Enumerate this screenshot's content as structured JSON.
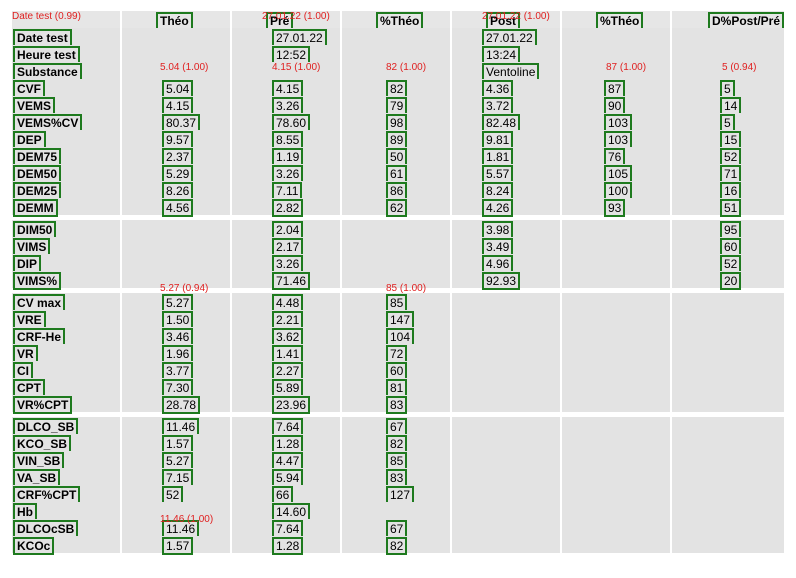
{
  "columns": [
    "Théo",
    "Pré",
    "%Théo",
    "Post",
    "%Théo",
    "D%Post/Pré"
  ],
  "rows": [
    {
      "label": "Date test",
      "values": [
        "",
        "27.01.22",
        "",
        "27.01.22",
        "",
        ""
      ]
    },
    {
      "label": "Heure test",
      "values": [
        "",
        "12:52",
        "",
        "13:24",
        "",
        ""
      ]
    },
    {
      "label": "Substance",
      "values": [
        "",
        "",
        "",
        "Ventoline",
        "",
        ""
      ]
    },
    {
      "label": "CVF",
      "values": [
        "5.04",
        "4.15",
        "82",
        "4.36",
        "87",
        "5"
      ]
    },
    {
      "label": "VEMS",
      "values": [
        "4.15",
        "3.26",
        "79",
        "3.72",
        "90",
        "14"
      ]
    },
    {
      "label": "VEMS%CV",
      "values": [
        "80.37",
        "78.60",
        "98",
        "82.48",
        "103",
        "5"
      ]
    },
    {
      "label": "DEP",
      "values": [
        "9.57",
        "8.55",
        "89",
        "9.81",
        "103",
        "15"
      ]
    },
    {
      "label": "DEM75",
      "values": [
        "2.37",
        "1.19",
        "50",
        "1.81",
        "76",
        "52"
      ]
    },
    {
      "label": "DEM50",
      "values": [
        "5.29",
        "3.26",
        "61",
        "5.57",
        "105",
        "71"
      ]
    },
    {
      "label": "DEM25",
      "values": [
        "8.26",
        "7.11",
        "86",
        "8.24",
        "100",
        "16"
      ]
    },
    {
      "label": "DEMM",
      "values": [
        "4.56",
        "2.82",
        "62",
        "4.26",
        "93",
        "51"
      ]
    },
    {
      "label": "DIM50",
      "values": [
        "",
        "2.04",
        "",
        "3.98",
        "",
        "95"
      ]
    },
    {
      "label": "VIMS",
      "values": [
        "",
        "2.17",
        "",
        "3.49",
        "",
        "60"
      ]
    },
    {
      "label": "DIP",
      "values": [
        "",
        "3.26",
        "",
        "4.96",
        "",
        "52"
      ]
    },
    {
      "label": "VIMS%",
      "values": [
        "",
        "71.46",
        "",
        "92.93",
        "",
        "20"
      ]
    },
    {
      "label": "CV max",
      "values": [
        "5.27",
        "4.48",
        "85",
        "",
        "",
        ""
      ]
    },
    {
      "label": "VRE",
      "values": [
        "1.50",
        "2.21",
        "147",
        "",
        "",
        ""
      ]
    },
    {
      "label": "CRF-He",
      "values": [
        "3.46",
        "3.62",
        "104",
        "",
        "",
        ""
      ]
    },
    {
      "label": "VR",
      "values": [
        "1.96",
        "1.41",
        "72",
        "",
        "",
        ""
      ]
    },
    {
      "label": "CI",
      "values": [
        "3.77",
        "2.27",
        "60",
        "",
        "",
        ""
      ]
    },
    {
      "label": "CPT",
      "values": [
        "7.30",
        "5.89",
        "81",
        "",
        "",
        ""
      ]
    },
    {
      "label": "VR%CPT",
      "values": [
        "28.78",
        "23.96",
        "83",
        "",
        "",
        ""
      ]
    },
    {
      "label": "DLCO_SB",
      "values": [
        "11.46",
        "7.64",
        "67",
        "",
        "",
        ""
      ]
    },
    {
      "label": "KCO_SB",
      "values": [
        "1.57",
        "1.28",
        "82",
        "",
        "",
        ""
      ]
    },
    {
      "label": "VIN_SB",
      "values": [
        "5.27",
        "4.47",
        "85",
        "",
        "",
        ""
      ]
    },
    {
      "label": "VA_SB",
      "values": [
        "7.15",
        "5.94",
        "83",
        "",
        "",
        ""
      ]
    },
    {
      "label": "CRF%CPT",
      "values": [
        "52",
        "66",
        "127",
        "",
        "",
        ""
      ]
    },
    {
      "label": "Hb",
      "values": [
        "",
        "14.60",
        "",
        "",
        "",
        ""
      ]
    },
    {
      "label": "DLCOcSB",
      "values": [
        "11.46",
        "7.64",
        "67",
        "",
        "",
        ""
      ]
    },
    {
      "label": "KCOc",
      "values": [
        "1.57",
        "1.28",
        "82",
        "",
        "",
        ""
      ]
    }
  ],
  "annotations": [
    "Date test (0.99)",
    "27.01.22 (1.00)",
    "27.01.22 (1.00)",
    "5.04 (1.00)",
    "4.15 (1.00)",
    "82 (1.00)",
    "87 (1.00)",
    "5 (0.94)",
    "5.27 (0.94)",
    "85 (1.00)",
    "11.46 (1.00)"
  ]
}
